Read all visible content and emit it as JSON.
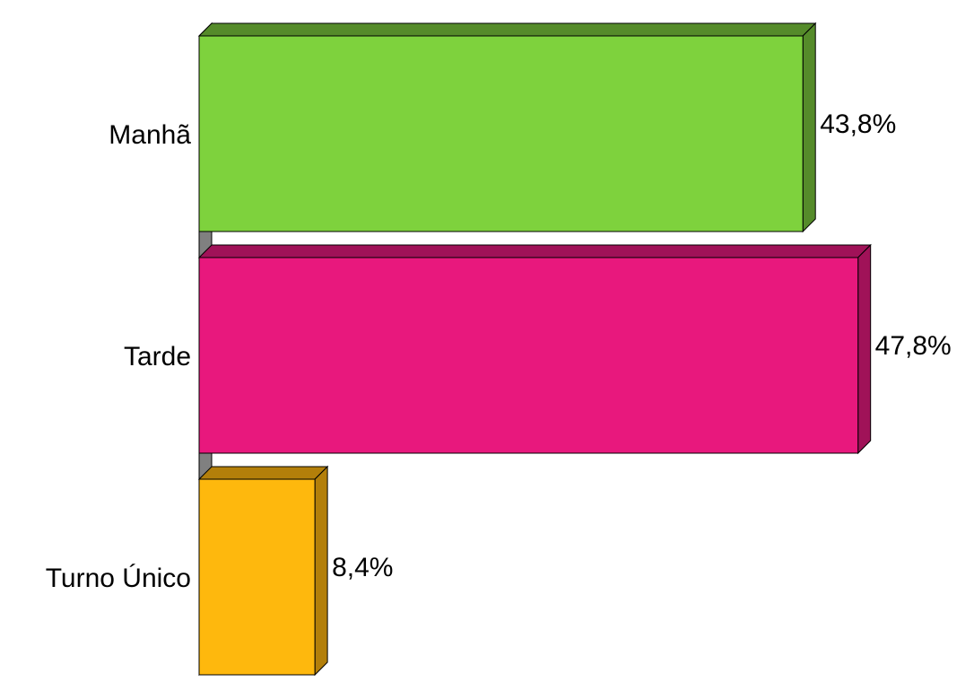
{
  "chart_data": {
    "type": "bar",
    "orientation": "horizontal",
    "three_d": true,
    "categories": [
      "Manhã",
      "Tarde",
      "Turno Único"
    ],
    "values": [
      43.8,
      47.8,
      8.4
    ],
    "value_labels": [
      "43,8%",
      "47,8%",
      "8,4%"
    ],
    "colors": [
      "#7ED23D",
      "#E8187D",
      "#FEB80D"
    ],
    "side_colors": [
      "#558B2A",
      "#A01258",
      "#B37F0A"
    ],
    "wall_color": "#808080",
    "xlim": [
      0,
      50
    ],
    "grid": false,
    "legend": "none"
  }
}
